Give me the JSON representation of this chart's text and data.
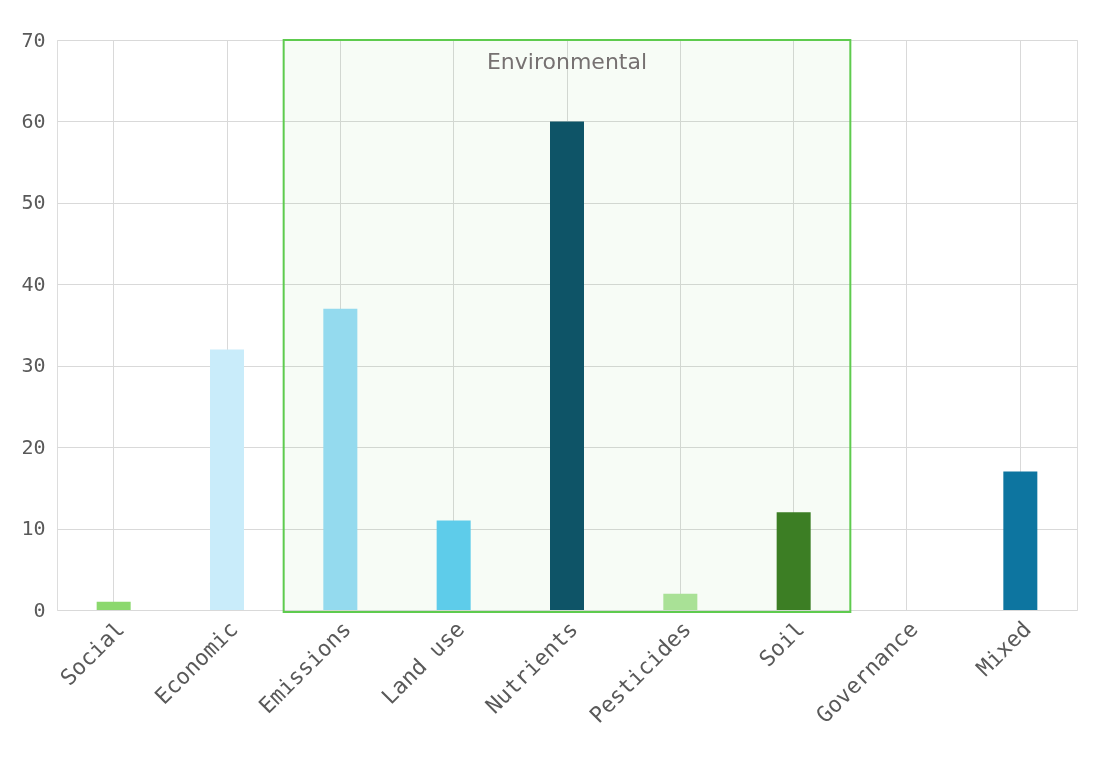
{
  "chart_data": {
    "type": "bar",
    "categories": [
      "Social",
      "Economic",
      "Emissions",
      "Land use",
      "Nutrients",
      "Pesticides",
      "Soil",
      "Governance",
      "Mixed"
    ],
    "values": [
      1,
      32,
      37,
      11,
      60,
      2,
      12,
      0,
      17
    ],
    "colors": [
      "#8cd86e",
      "#c9ecfa",
      "#97dcf7",
      "#5ecdf3",
      "#0a4f69",
      "#ade39a",
      "#3a7b22",
      "#5b9bd5",
      "#0d75a0"
    ],
    "ylim": [
      0,
      70
    ],
    "yticks": [
      0,
      10,
      20,
      30,
      40,
      50,
      60,
      70
    ],
    "grid": true,
    "bands": [
      {
        "axis": "x",
        "from": "Emissions",
        "to": "Soil",
        "label": "Environmental",
        "color": "#5ecb4e"
      }
    ]
  }
}
